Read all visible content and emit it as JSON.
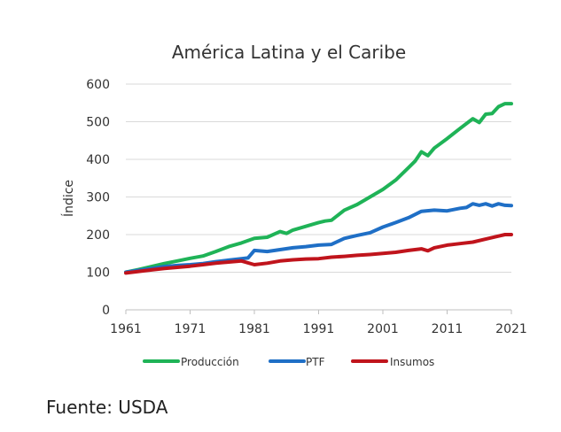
{
  "chart_data": {
    "type": "line",
    "title": "América Latina y el Caribe",
    "xlabel": "",
    "ylabel": "Índice",
    "xlim": [
      1961,
      2021
    ],
    "ylim": [
      0,
      600
    ],
    "x_ticks": [
      "1961",
      "1971",
      "1981",
      "1991",
      "2001",
      "2011",
      "2021"
    ],
    "y_ticks": [
      "0",
      "100",
      "200",
      "300",
      "400",
      "500",
      "600"
    ],
    "grid": true,
    "legend_position": "bottom",
    "series": [
      {
        "name": "Producción",
        "color": "#1fb357",
        "x": [
          1961,
          1963,
          1965,
          1967,
          1969,
          1971,
          1973,
          1975,
          1977,
          1979,
          1981,
          1983,
          1985,
          1986,
          1987,
          1989,
          1991,
          1992,
          1993,
          1995,
          1997,
          1999,
          2001,
          2003,
          2005,
          2006,
          2007,
          2008,
          2009,
          2011,
          2013,
          2015,
          2016,
          2017,
          2018,
          2019,
          2020,
          2021
        ],
        "y": [
          100,
          107,
          115,
          123,
          130,
          137,
          143,
          155,
          168,
          178,
          190,
          193,
          208,
          203,
          212,
          222,
          232,
          236,
          238,
          265,
          280,
          300,
          320,
          345,
          378,
          395,
          420,
          410,
          430,
          455,
          482,
          508,
          498,
          520,
          522,
          540,
          548,
          548
        ]
      },
      {
        "name": "PTF",
        "color": "#1f6fc6",
        "x": [
          1961,
          1963,
          1965,
          1967,
          1969,
          1971,
          1973,
          1975,
          1977,
          1979,
          1980,
          1981,
          1983,
          1985,
          1987,
          1989,
          1991,
          1993,
          1995,
          1997,
          1999,
          2001,
          2003,
          2005,
          2007,
          2009,
          2011,
          2013,
          2014,
          2015,
          2016,
          2017,
          2018,
          2019,
          2020,
          2021
        ],
        "y": [
          100,
          105,
          110,
          115,
          118,
          120,
          123,
          128,
          132,
          136,
          138,
          158,
          155,
          160,
          165,
          168,
          172,
          174,
          190,
          198,
          205,
          220,
          232,
          245,
          262,
          265,
          263,
          270,
          272,
          282,
          278,
          282,
          276,
          282,
          278,
          277
        ]
      },
      {
        "name": "Insumos",
        "color": "#c0141c",
        "x": [
          1961,
          1963,
          1965,
          1967,
          1969,
          1971,
          1973,
          1975,
          1977,
          1979,
          1981,
          1983,
          1985,
          1987,
          1989,
          1991,
          1993,
          1995,
          1997,
          1999,
          2001,
          2003,
          2005,
          2007,
          2008,
          2009,
          2011,
          2013,
          2015,
          2017,
          2019,
          2020,
          2021
        ],
        "y": [
          98,
          102,
          106,
          110,
          113,
          116,
          120,
          124,
          127,
          130,
          120,
          124,
          130,
          133,
          135,
          136,
          140,
          142,
          145,
          147,
          150,
          153,
          158,
          162,
          157,
          165,
          172,
          176,
          180,
          188,
          196,
          200,
          200
        ]
      }
    ]
  },
  "source_text": "Fuente: USDA"
}
